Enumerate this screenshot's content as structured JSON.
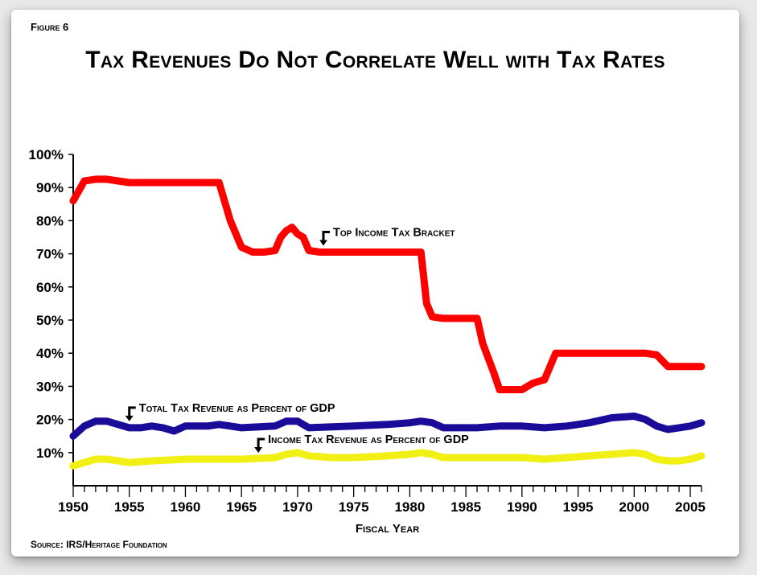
{
  "figure_label": "Figure 6",
  "title": "Tax Revenues Do Not Correlate Well with Tax Rates",
  "source": "Source: IRS/Heritage Foundation",
  "chart_data": {
    "type": "line",
    "title": "Tax Revenues Do Not Correlate Well with Tax Rates",
    "xlabel": "Fiscal Year",
    "ylabel": "",
    "xlim": [
      1950,
      2006
    ],
    "ylim": [
      0,
      100
    ],
    "y_ticks": [
      "10%",
      "20%",
      "30%",
      "40%",
      "50%",
      "60%",
      "70%",
      "80%",
      "90%",
      "100%"
    ],
    "x_ticks": [
      "1950",
      "1955",
      "1960",
      "1965",
      "1970",
      "1975",
      "1980",
      "1985",
      "1990",
      "1995",
      "2000",
      "2005"
    ],
    "grid": false,
    "series": [
      {
        "name": "Top Income Tax Bracket",
        "color": "#ff0000",
        "points": [
          [
            1950,
            86
          ],
          [
            1951,
            92
          ],
          [
            1952,
            92.5
          ],
          [
            1953,
            92.5
          ],
          [
            1954,
            92
          ],
          [
            1955,
            91.5
          ],
          [
            1960,
            91.5
          ],
          [
            1963,
            91.5
          ],
          [
            1964,
            80
          ],
          [
            1965,
            72
          ],
          [
            1966,
            70.5
          ],
          [
            1967,
            70.5
          ],
          [
            1968,
            71
          ],
          [
            1968.5,
            75
          ],
          [
            1969,
            77
          ],
          [
            1969.5,
            78
          ],
          [
            1970,
            76
          ],
          [
            1970.5,
            75
          ],
          [
            1971,
            71
          ],
          [
            1972,
            70.5
          ],
          [
            1973,
            70.5
          ],
          [
            1975,
            70.5
          ],
          [
            1980,
            70.5
          ],
          [
            1981,
            70.5
          ],
          [
            1981.5,
            55
          ],
          [
            1982,
            51
          ],
          [
            1983,
            50.5
          ],
          [
            1986,
            50.5
          ],
          [
            1986.5,
            43
          ],
          [
            1987,
            38.5
          ],
          [
            1987.5,
            34
          ],
          [
            1988,
            29
          ],
          [
            1989,
            29
          ],
          [
            1990,
            29
          ],
          [
            1991,
            31
          ],
          [
            1992,
            32
          ],
          [
            1993,
            40
          ],
          [
            1995,
            40
          ],
          [
            2000,
            40
          ],
          [
            2001,
            40
          ],
          [
            2002,
            39.5
          ],
          [
            2003,
            36
          ],
          [
            2004,
            36
          ],
          [
            2006,
            36
          ]
        ]
      },
      {
        "name": "Total Tax Revenue as Percent of GDP",
        "color": "#1a0c99",
        "points": [
          [
            1950,
            15
          ],
          [
            1951,
            18
          ],
          [
            1952,
            19.5
          ],
          [
            1953,
            19.5
          ],
          [
            1954,
            18.5
          ],
          [
            1955,
            17.5
          ],
          [
            1956,
            17.5
          ],
          [
            1957,
            18
          ],
          [
            1958,
            17.5
          ],
          [
            1959,
            16.5
          ],
          [
            1960,
            18
          ],
          [
            1962,
            18
          ],
          [
            1963,
            18.5
          ],
          [
            1964,
            18
          ],
          [
            1965,
            17.5
          ],
          [
            1968,
            18
          ],
          [
            1969,
            19.5
          ],
          [
            1970,
            19.5
          ],
          [
            1971,
            17.5
          ],
          [
            1975,
            18
          ],
          [
            1978,
            18.5
          ],
          [
            1980,
            19
          ],
          [
            1981,
            19.5
          ],
          [
            1982,
            19
          ],
          [
            1983,
            17.5
          ],
          [
            1985,
            17.5
          ],
          [
            1986,
            17.5
          ],
          [
            1988,
            18
          ],
          [
            1990,
            18
          ],
          [
            1992,
            17.5
          ],
          [
            1994,
            18
          ],
          [
            1996,
            19
          ],
          [
            1998,
            20.5
          ],
          [
            2000,
            21
          ],
          [
            2001,
            20
          ],
          [
            2002,
            18
          ],
          [
            2003,
            17
          ],
          [
            2004,
            17.5
          ],
          [
            2005,
            18
          ],
          [
            2006,
            19
          ]
        ]
      },
      {
        "name": "Income Tax Revenue as Percent of GDP",
        "color": "#f2ef14",
        "points": [
          [
            1950,
            6
          ],
          [
            1951,
            7
          ],
          [
            1952,
            8
          ],
          [
            1953,
            8
          ],
          [
            1954,
            7.5
          ],
          [
            1955,
            7
          ],
          [
            1957,
            7.5
          ],
          [
            1960,
            8
          ],
          [
            1965,
            8
          ],
          [
            1968,
            8.5
          ],
          [
            1969,
            9.5
          ],
          [
            1970,
            10
          ],
          [
            1971,
            9
          ],
          [
            1973,
            8.5
          ],
          [
            1975,
            8.5
          ],
          [
            1978,
            9
          ],
          [
            1980,
            9.5
          ],
          [
            1981,
            10
          ],
          [
            1982,
            9.5
          ],
          [
            1983,
            8.5
          ],
          [
            1984,
            8.5
          ],
          [
            1985,
            8.5
          ],
          [
            1986,
            8.5
          ],
          [
            1988,
            8.5
          ],
          [
            1990,
            8.5
          ],
          [
            1992,
            8
          ],
          [
            1994,
            8.5
          ],
          [
            1996,
            9
          ],
          [
            1998,
            9.5
          ],
          [
            2000,
            10
          ],
          [
            2001,
            9.5
          ],
          [
            2002,
            8
          ],
          [
            2003,
            7.5
          ],
          [
            2004,
            7.5
          ],
          [
            2005,
            8
          ],
          [
            2006,
            9
          ]
        ]
      }
    ],
    "annotations": [
      {
        "text": "Top Income Tax Bracket",
        "year": 1972.3,
        "value": 70.5
      },
      {
        "text": "Total Tax Revenue as Percent of GDP",
        "year": 1955,
        "value": 17.5
      },
      {
        "text": "Income Tax Revenue as Percent of GDP",
        "year": 1966.5,
        "value": 8
      }
    ]
  }
}
